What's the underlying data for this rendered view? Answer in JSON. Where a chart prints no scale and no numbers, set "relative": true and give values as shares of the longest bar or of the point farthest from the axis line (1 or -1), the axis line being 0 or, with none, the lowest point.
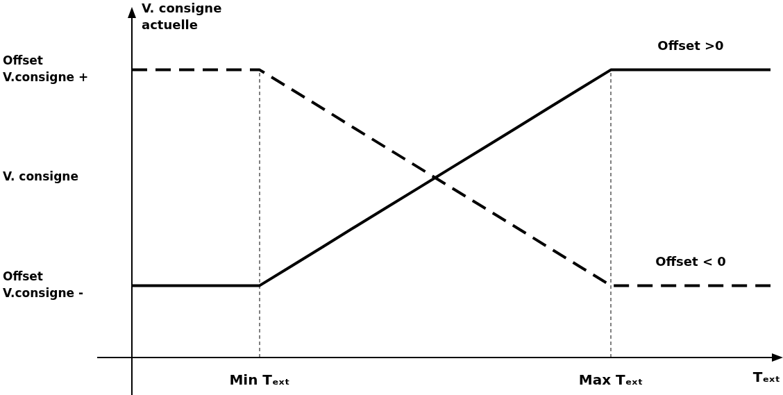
{
  "chart_data": {
    "type": "line",
    "relative": true,
    "xlabel": "Tₑₓₜ",
    "ylabel": "V. consigne actuelle",
    "categories": [
      null,
      null,
      null,
      null,
      "Min Tₑₓₜ",
      null,
      null,
      null,
      null,
      null,
      null,
      null,
      null,
      null,
      null,
      "Max Tₑₓₜ",
      null,
      null,
      null,
      null,
      null
    ],
    "series": [
      {
        "name": "Offset >0",
        "color": "#000000",
        "line_style": "solid",
        "values": [
          0.25,
          0.25,
          0.25,
          0.25,
          0.25,
          0.318,
          0.386,
          0.455,
          0.523,
          0.591,
          0.659,
          0.727,
          0.795,
          0.864,
          0.932,
          1,
          1,
          1,
          1,
          1,
          1
        ]
      },
      {
        "name": "Offset < 0",
        "color": "#000000",
        "line_style": "dashed",
        "values": [
          1,
          1,
          1,
          1,
          1,
          0.932,
          0.864,
          0.795,
          0.727,
          0.659,
          0.591,
          0.523,
          0.455,
          0.386,
          0.318,
          0.25,
          0.25,
          0.25,
          0.25,
          0.25,
          0.25
        ]
      }
    ],
    "annotations": [
      "Offset\nV.consigne +",
      "V. consigne",
      "Offset\nV.consigne -"
    ],
    "grid": "x",
    "legend": false,
    "marker": "none"
  }
}
